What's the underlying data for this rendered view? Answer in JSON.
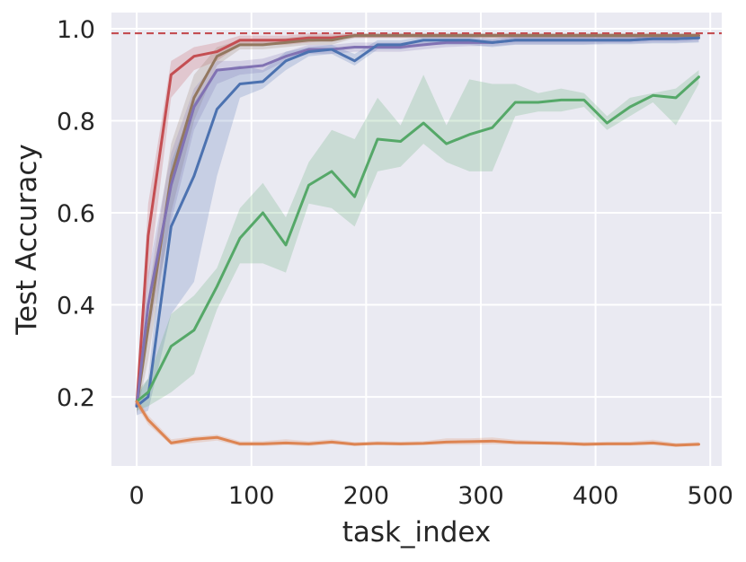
{
  "chart_data": {
    "type": "line",
    "xlabel": "task_index",
    "ylabel": "Test Accuracy",
    "xlim": [
      -22,
      510
    ],
    "ylim": [
      0.05,
      1.035
    ],
    "x_ticks": [
      0,
      100,
      200,
      300,
      400,
      500
    ],
    "x_tick_labels": [
      "0",
      "100",
      "200",
      "300",
      "400",
      "500"
    ],
    "y_ticks": [
      0.2,
      0.4,
      0.6,
      0.8,
      1.0
    ],
    "y_tick_labels": [
      "0.2",
      "0.4",
      "0.6",
      "0.8",
      "1.0"
    ],
    "grid": true,
    "legend": "none",
    "background": "#eaeaf2",
    "reference_line": {
      "y": 0.99,
      "color": "#c44e52",
      "style": "dashed"
    },
    "x": [
      0,
      10,
      30,
      50,
      70,
      90,
      110,
      130,
      150,
      170,
      190,
      210,
      230,
      250,
      270,
      290,
      310,
      330,
      350,
      370,
      390,
      410,
      430,
      450,
      470,
      490
    ],
    "series": [
      {
        "color": "#c44e52",
        "values": [
          0.18,
          0.55,
          0.9,
          0.94,
          0.95,
          0.975,
          0.975,
          0.975,
          0.98,
          0.98,
          0.985,
          0.985,
          0.985,
          0.985,
          0.985,
          0.985,
          0.985,
          0.985,
          0.985,
          0.985,
          0.985,
          0.985,
          0.985,
          0.985,
          0.985,
          0.985
        ],
        "lower": [
          0.16,
          0.45,
          0.85,
          0.91,
          0.93,
          0.965,
          0.965,
          0.965,
          0.97,
          0.975,
          0.98,
          0.98,
          0.98,
          0.98,
          0.98,
          0.98,
          0.98,
          0.98,
          0.98,
          0.98,
          0.98,
          0.98,
          0.98,
          0.98,
          0.98,
          0.98
        ],
        "upper": [
          0.2,
          0.62,
          0.93,
          0.96,
          0.97,
          0.985,
          0.985,
          0.985,
          0.99,
          0.99,
          0.99,
          0.99,
          0.99,
          0.99,
          0.99,
          0.99,
          0.99,
          0.99,
          0.99,
          0.99,
          0.99,
          0.99,
          0.99,
          0.99,
          0.99,
          0.99
        ]
      },
      {
        "color": "#937860",
        "values": [
          0.18,
          0.35,
          0.68,
          0.85,
          0.94,
          0.965,
          0.965,
          0.97,
          0.975,
          0.975,
          0.985,
          0.985,
          0.985,
          0.985,
          0.985,
          0.985,
          0.985,
          0.985,
          0.985,
          0.985,
          0.985,
          0.985,
          0.985,
          0.985,
          0.985,
          0.985
        ],
        "lower": [
          0.16,
          0.28,
          0.6,
          0.8,
          0.92,
          0.955,
          0.955,
          0.96,
          0.965,
          0.965,
          0.98,
          0.98,
          0.98,
          0.98,
          0.98,
          0.98,
          0.98,
          0.98,
          0.98,
          0.98,
          0.98,
          0.98,
          0.98,
          0.98,
          0.98,
          0.98
        ],
        "upper": [
          0.2,
          0.42,
          0.75,
          0.9,
          0.96,
          0.975,
          0.975,
          0.98,
          0.985,
          0.985,
          0.99,
          0.99,
          0.99,
          0.99,
          0.99,
          0.99,
          0.99,
          0.99,
          0.99,
          0.99,
          0.99,
          0.99,
          0.99,
          0.99,
          0.99,
          0.99
        ]
      },
      {
        "color": "#8172b3",
        "values": [
          0.18,
          0.4,
          0.66,
          0.83,
          0.91,
          0.915,
          0.92,
          0.94,
          0.955,
          0.955,
          0.96,
          0.96,
          0.96,
          0.965,
          0.97,
          0.97,
          0.97,
          0.975,
          0.975,
          0.975,
          0.975,
          0.975,
          0.975,
          0.978,
          0.978,
          0.98
        ],
        "lower": [
          0.16,
          0.33,
          0.58,
          0.78,
          0.88,
          0.9,
          0.905,
          0.93,
          0.945,
          0.945,
          0.95,
          0.95,
          0.95,
          0.955,
          0.96,
          0.962,
          0.962,
          0.966,
          0.966,
          0.966,
          0.966,
          0.968,
          0.968,
          0.97,
          0.97,
          0.972
        ],
        "upper": [
          0.2,
          0.47,
          0.73,
          0.87,
          0.93,
          0.93,
          0.935,
          0.95,
          0.965,
          0.965,
          0.97,
          0.97,
          0.97,
          0.975,
          0.978,
          0.978,
          0.978,
          0.982,
          0.982,
          0.982,
          0.982,
          0.982,
          0.982,
          0.985,
          0.985,
          0.987
        ]
      },
      {
        "color": "#4c72b0",
        "values": [
          0.18,
          0.2,
          0.57,
          0.68,
          0.825,
          0.88,
          0.885,
          0.93,
          0.95,
          0.955,
          0.93,
          0.965,
          0.965,
          0.975,
          0.975,
          0.975,
          0.97,
          0.975,
          0.975,
          0.975,
          0.975,
          0.975,
          0.975,
          0.978,
          0.978,
          0.98
        ],
        "lower": [
          0.16,
          0.17,
          0.38,
          0.45,
          0.68,
          0.85,
          0.87,
          0.91,
          0.94,
          0.945,
          0.92,
          0.955,
          0.955,
          0.965,
          0.965,
          0.965,
          0.96,
          0.965,
          0.965,
          0.965,
          0.965,
          0.966,
          0.966,
          0.968,
          0.968,
          0.97
        ],
        "upper": [
          0.2,
          0.24,
          0.71,
          0.84,
          0.91,
          0.92,
          0.91,
          0.95,
          0.96,
          0.965,
          0.945,
          0.975,
          0.975,
          0.982,
          0.982,
          0.982,
          0.978,
          0.982,
          0.982,
          0.982,
          0.982,
          0.982,
          0.982,
          0.985,
          0.985,
          0.987
        ]
      },
      {
        "color": "#55a868",
        "values": [
          0.19,
          0.21,
          0.31,
          0.345,
          0.44,
          0.545,
          0.6,
          0.53,
          0.66,
          0.69,
          0.635,
          0.76,
          0.755,
          0.795,
          0.75,
          0.77,
          0.785,
          0.84,
          0.84,
          0.845,
          0.845,
          0.795,
          0.83,
          0.855,
          0.85,
          0.895
        ],
        "lower": [
          0.17,
          0.18,
          0.21,
          0.25,
          0.39,
          0.49,
          0.49,
          0.47,
          0.62,
          0.61,
          0.57,
          0.69,
          0.7,
          0.75,
          0.71,
          0.69,
          0.69,
          0.81,
          0.82,
          0.82,
          0.83,
          0.78,
          0.81,
          0.84,
          0.79,
          0.88
        ],
        "upper": [
          0.21,
          0.24,
          0.38,
          0.42,
          0.48,
          0.61,
          0.665,
          0.59,
          0.71,
          0.78,
          0.76,
          0.85,
          0.79,
          0.9,
          0.79,
          0.89,
          0.88,
          0.88,
          0.86,
          0.87,
          0.86,
          0.81,
          0.85,
          0.86,
          0.87,
          0.91
        ]
      },
      {
        "color": "#dd8452",
        "values": [
          0.19,
          0.15,
          0.1,
          0.108,
          0.112,
          0.098,
          0.098,
          0.1,
          0.098,
          0.102,
          0.097,
          0.099,
          0.098,
          0.099,
          0.102,
          0.103,
          0.104,
          0.101,
          0.1,
          0.099,
          0.097,
          0.098,
          0.098,
          0.1,
          0.095,
          0.097
        ],
        "lower": [
          0.18,
          0.14,
          0.095,
          0.1,
          0.105,
          0.093,
          0.093,
          0.095,
          0.093,
          0.097,
          0.093,
          0.095,
          0.094,
          0.095,
          0.096,
          0.096,
          0.097,
          0.096,
          0.096,
          0.095,
          0.093,
          0.094,
          0.094,
          0.095,
          0.091,
          0.093
        ],
        "upper": [
          0.2,
          0.16,
          0.108,
          0.114,
          0.118,
          0.104,
          0.104,
          0.108,
          0.104,
          0.108,
          0.102,
          0.104,
          0.103,
          0.104,
          0.11,
          0.11,
          0.112,
          0.107,
          0.105,
          0.104,
          0.102,
          0.103,
          0.103,
          0.107,
          0.1,
          0.102
        ]
      }
    ]
  }
}
